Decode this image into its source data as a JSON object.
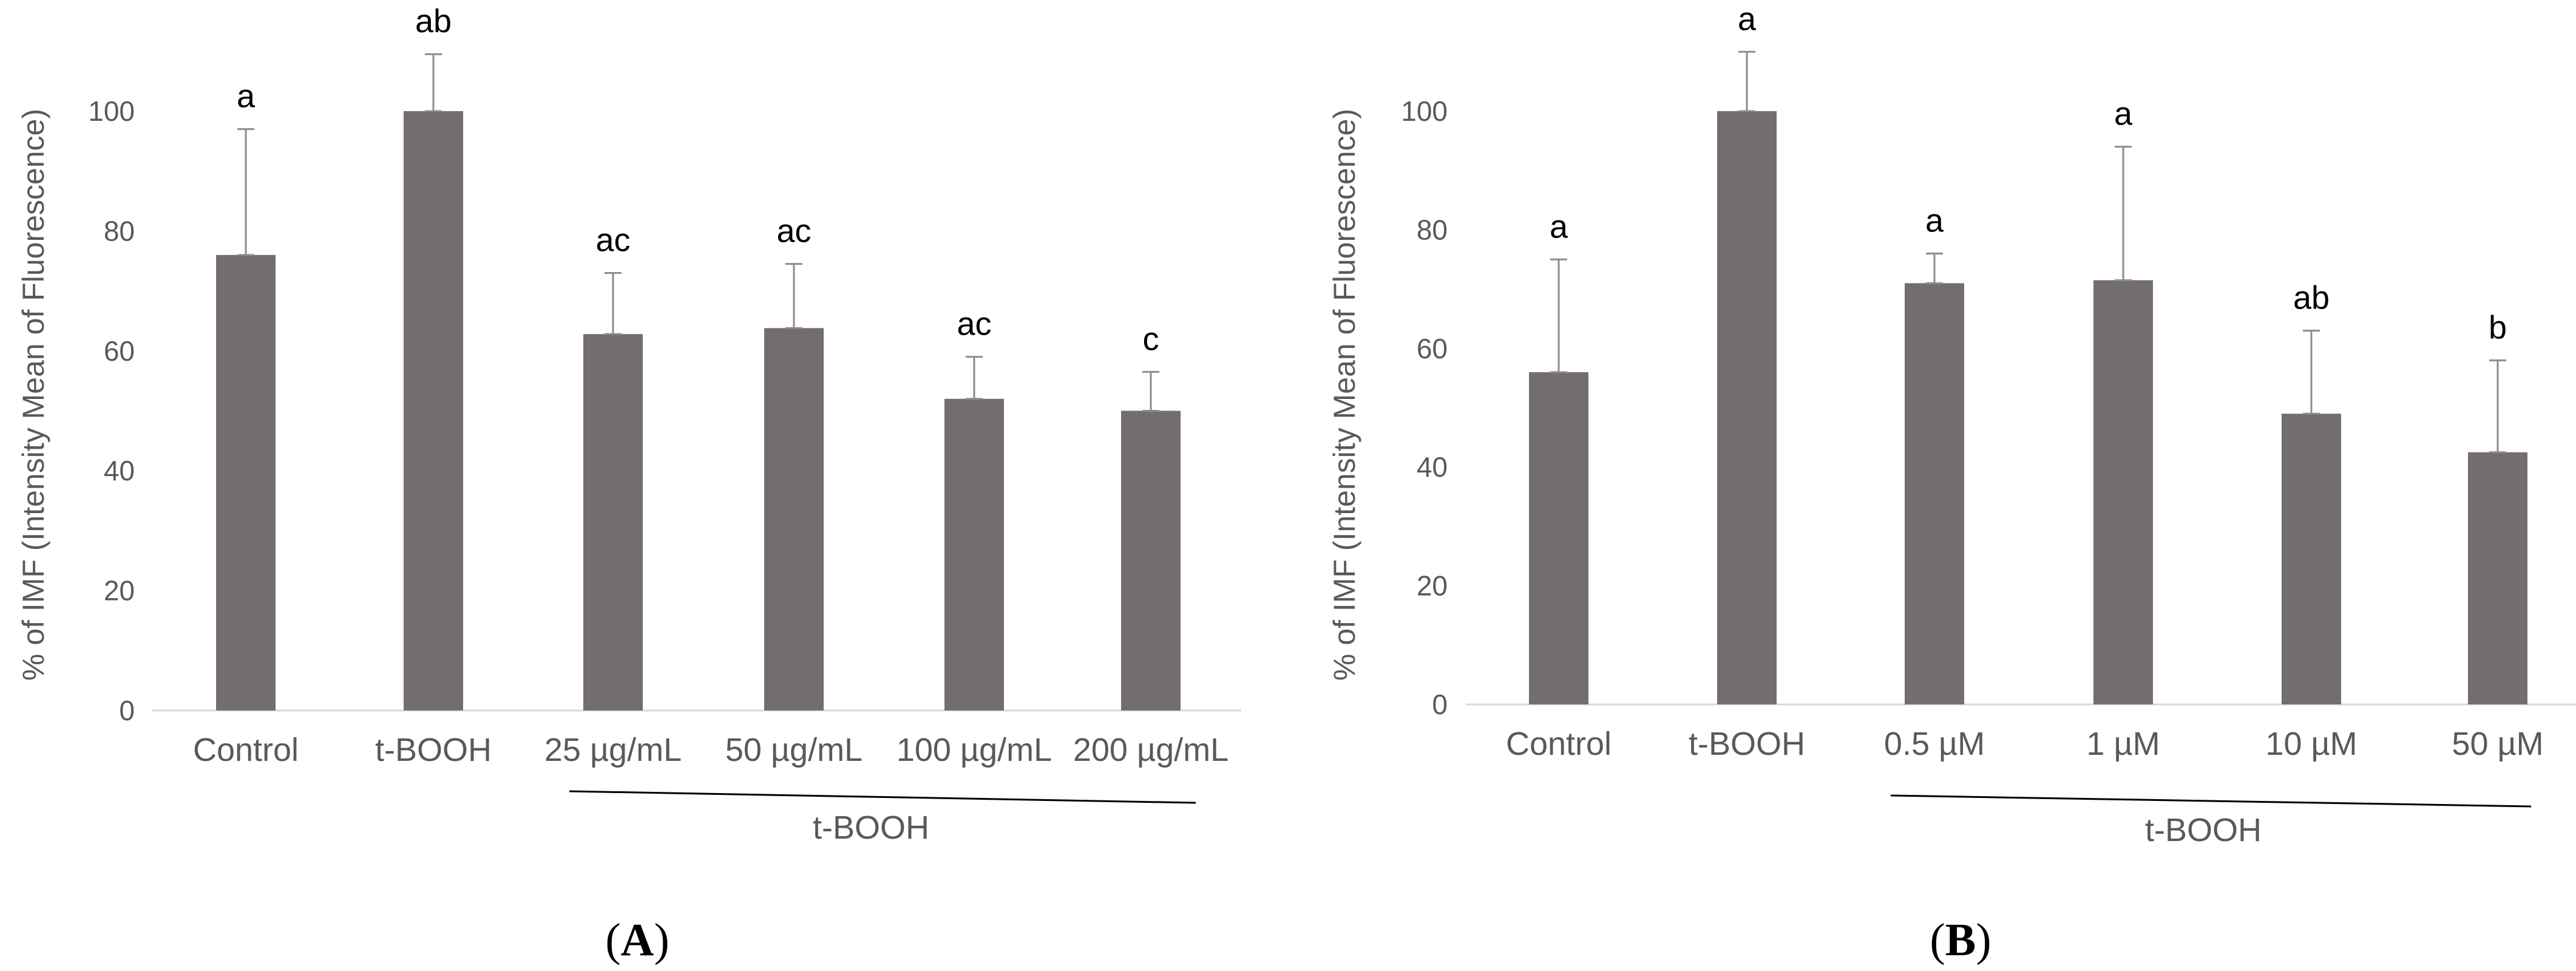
{
  "colors": {
    "bar": "#736e6d",
    "error": "#8c8c8c",
    "axis": "#d9d9d9",
    "text": "#595959",
    "bracket": "#000000"
  },
  "chart_data": [
    {
      "type": "bar",
      "panel_label": "A",
      "panel_letter": "A",
      "ylabel": "% of IMF (Intensity Mean of Fluorescence)",
      "ylim": [
        0,
        100
      ],
      "yticks": [
        0,
        20,
        40,
        60,
        80,
        100
      ],
      "categories": [
        "Control",
        "t-BOOH",
        "25 µg/mL",
        "50 µg/mL",
        "100 µg/mL",
        "200 µg/mL"
      ],
      "values": [
        76,
        100,
        62.8,
        63.8,
        52,
        50
      ],
      "error_upper": [
        97,
        109.5,
        73,
        74.5,
        59,
        56.5
      ],
      "significance": [
        "a",
        "ab",
        "ac",
        "ac",
        "ac",
        "c"
      ],
      "group_label": "t-BOOH",
      "group_span": [
        2,
        5
      ]
    },
    {
      "type": "bar",
      "panel_label": "B",
      "panel_letter": "B",
      "ylabel": "% of IMF (Intensity Mean of Fluorescence)",
      "ylim": [
        0,
        100
      ],
      "yticks": [
        0,
        20,
        40,
        60,
        80,
        100
      ],
      "categories": [
        "Control",
        "t-BOOH",
        "0.5 µM",
        "1 µM",
        "10 µM",
        "50 µM"
      ],
      "values": [
        56,
        100,
        71,
        71.5,
        49,
        42.5
      ],
      "error_upper": [
        75,
        110,
        76,
        94,
        63,
        58
      ],
      "significance": [
        "a",
        "a",
        "a",
        "a",
        "ab",
        "b"
      ],
      "group_label": "t-BOOH",
      "group_span": [
        2,
        5
      ]
    }
  ]
}
